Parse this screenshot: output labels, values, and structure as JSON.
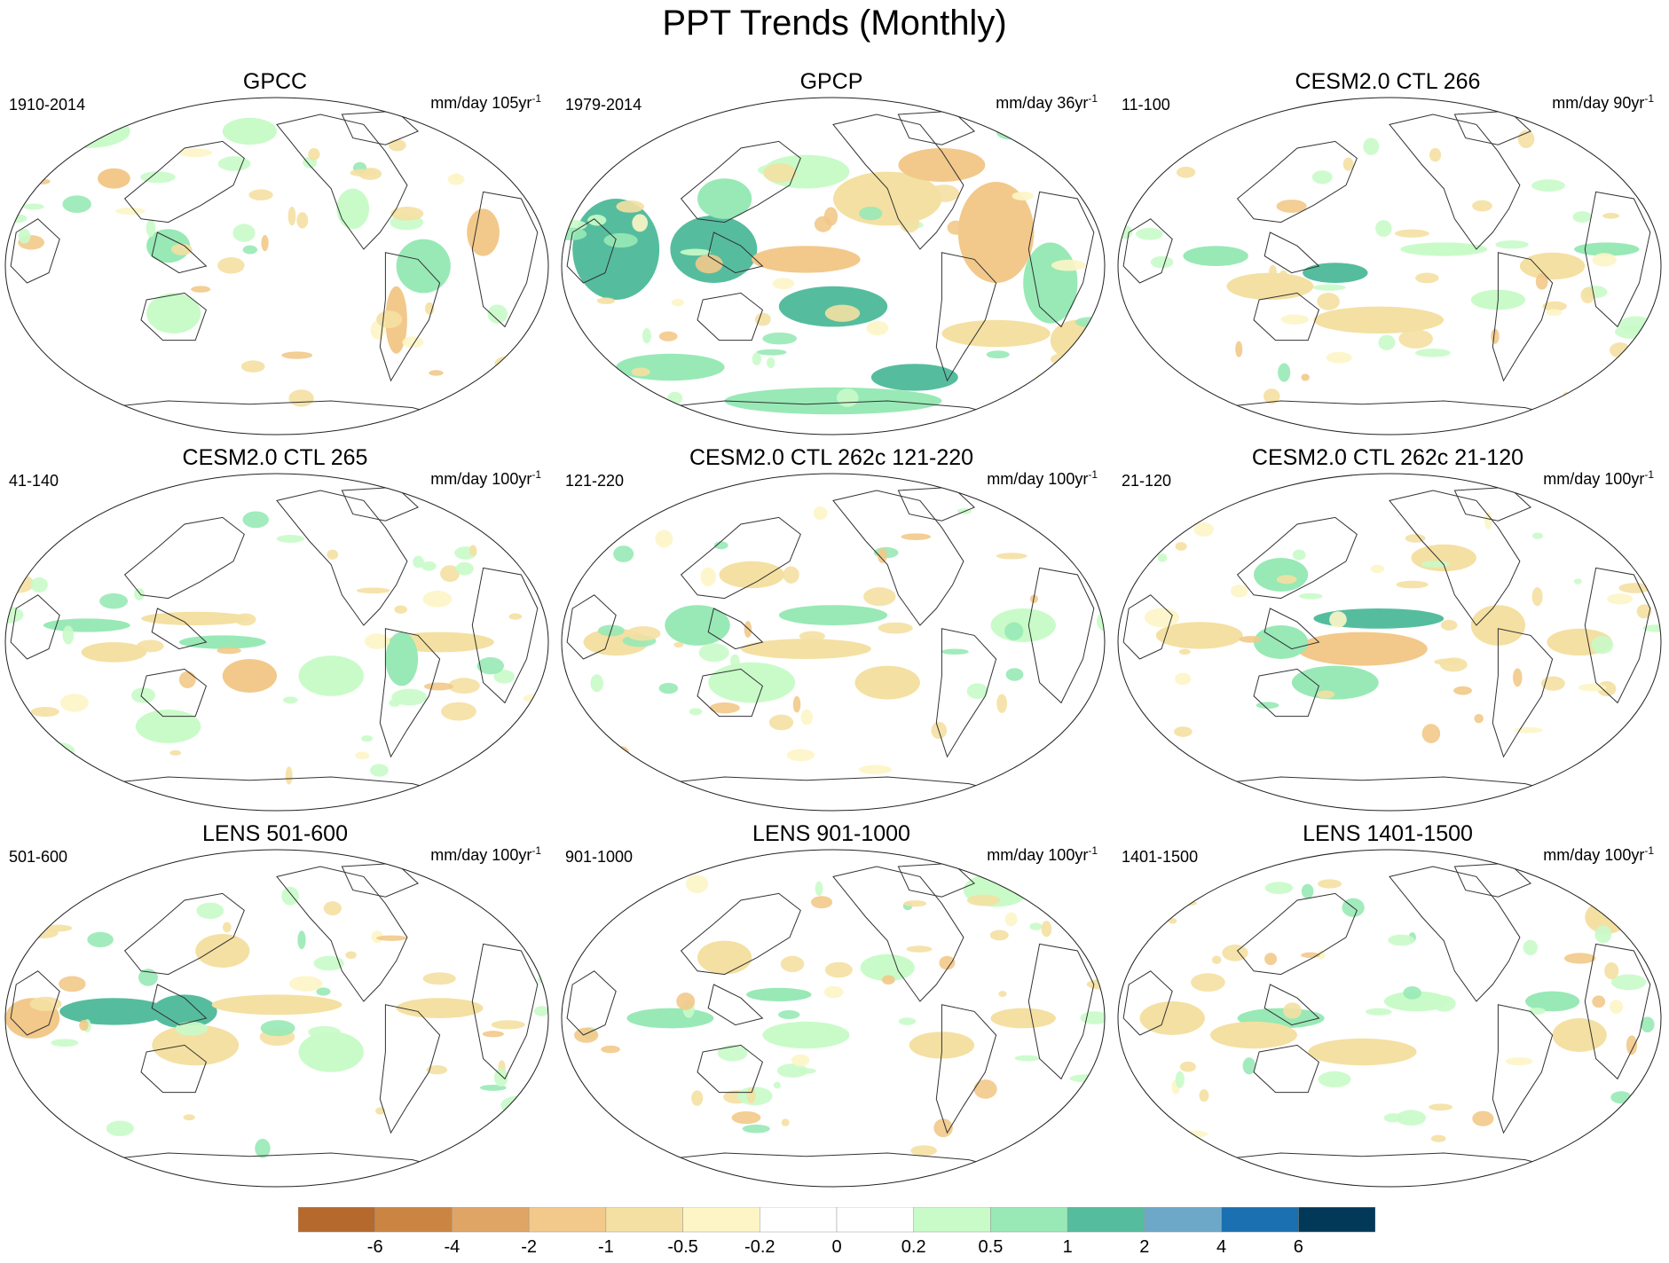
{
  "title": "PPT Trends (Monthly)",
  "panels": [
    {
      "title": "GPCC",
      "period": "1910-2014",
      "units": "mm/day 105yr",
      "units_exp": "-1",
      "pattern": "gpcc"
    },
    {
      "title": "GPCP",
      "period": "1979-2014",
      "units": "mm/day 36yr",
      "units_exp": "-1",
      "pattern": "gpcp"
    },
    {
      "title": "CESM2.0 CTL 266",
      "period": "11-100",
      "units": "mm/day 90yr",
      "units_exp": "-1",
      "pattern": "model-a"
    },
    {
      "title": "CESM2.0 CTL 265",
      "period": "41-140",
      "units": "mm/day 100yr",
      "units_exp": "-1",
      "pattern": "model-b"
    },
    {
      "title": "CESM2.0 CTL 262c 121-220",
      "period": "121-220",
      "units": "mm/day 100yr",
      "units_exp": "-1",
      "pattern": "model-c"
    },
    {
      "title": "CESM2.0 CTL 262c 21-120",
      "period": "21-120",
      "units": "mm/day 100yr",
      "units_exp": "-1",
      "pattern": "model-d"
    },
    {
      "title": "LENS 501-600",
      "period": "501-600",
      "units": "mm/day 100yr",
      "units_exp": "-1",
      "pattern": "lens-a"
    },
    {
      "title": "LENS 901-1000",
      "period": "901-1000",
      "units": "mm/day 100yr",
      "units_exp": "-1",
      "pattern": "lens-b"
    },
    {
      "title": "LENS 1401-1500",
      "period": "1401-1500",
      "units": "mm/day 100yr",
      "units_exp": "-1",
      "pattern": "lens-c"
    }
  ],
  "colorbar": {
    "labels": [
      "-6",
      "-4",
      "-2",
      "-1",
      "-0.5",
      "-0.2",
      "0",
      "0.2",
      "0.5",
      "1",
      "2",
      "4",
      "6"
    ],
    "colors": [
      "#b5692c",
      "#cb8542",
      "#dea564",
      "#f2c98a",
      "#f4e0a2",
      "#fdf5c6",
      "#ffffff",
      "#ffffff",
      "#c9fbc9",
      "#98e9b6",
      "#55bd9e",
      "#6da8c8",
      "#1a70b0",
      "#023858"
    ]
  }
}
